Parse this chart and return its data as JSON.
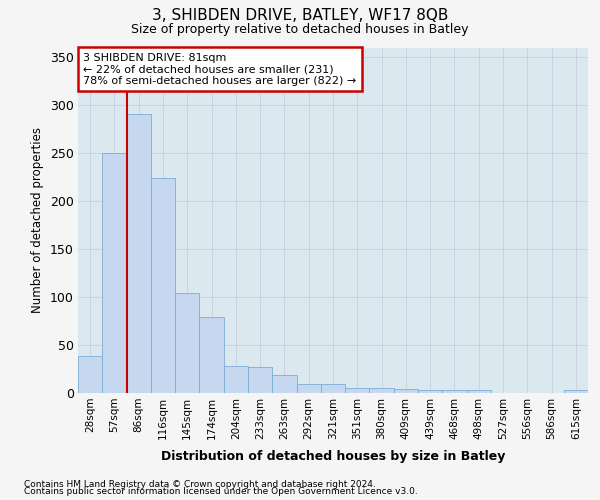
{
  "title": "3, SHIBDEN DRIVE, BATLEY, WF17 8QB",
  "subtitle": "Size of property relative to detached houses in Batley",
  "xlabel": "Distribution of detached houses by size in Batley",
  "ylabel": "Number of detached properties",
  "categories": [
    "28sqm",
    "57sqm",
    "86sqm",
    "116sqm",
    "145sqm",
    "174sqm",
    "204sqm",
    "233sqm",
    "263sqm",
    "292sqm",
    "321sqm",
    "351sqm",
    "380sqm",
    "409sqm",
    "439sqm",
    "468sqm",
    "498sqm",
    "527sqm",
    "556sqm",
    "586sqm",
    "615sqm"
  ],
  "values": [
    38,
    250,
    291,
    224,
    104,
    79,
    28,
    27,
    18,
    9,
    9,
    5,
    5,
    4,
    3,
    3,
    3,
    0,
    0,
    0,
    3
  ],
  "bar_color": "#c5d8ef",
  "bar_edge_color": "#7aadd4",
  "bar_edge_width": 0.6,
  "marker_bin_index": 2,
  "annotation_line1": "3 SHIBDEN DRIVE: 81sqm",
  "annotation_line2": "← 22% of detached houses are smaller (231)",
  "annotation_line3": "78% of semi-detached houses are larger (822) →",
  "annotation_box_facecolor": "#ffffff",
  "annotation_box_edgecolor": "#cc0000",
  "marker_line_color": "#cc0000",
  "ylim": [
    0,
    360
  ],
  "yticks": [
    0,
    50,
    100,
    150,
    200,
    250,
    300,
    350
  ],
  "grid_color": "#c8d4e0",
  "plot_bg_color": "#dce8f0",
  "fig_bg_color": "#f5f5f5",
  "footnote1": "Contains HM Land Registry data © Crown copyright and database right 2024.",
  "footnote2": "Contains public sector information licensed under the Open Government Licence v3.0."
}
